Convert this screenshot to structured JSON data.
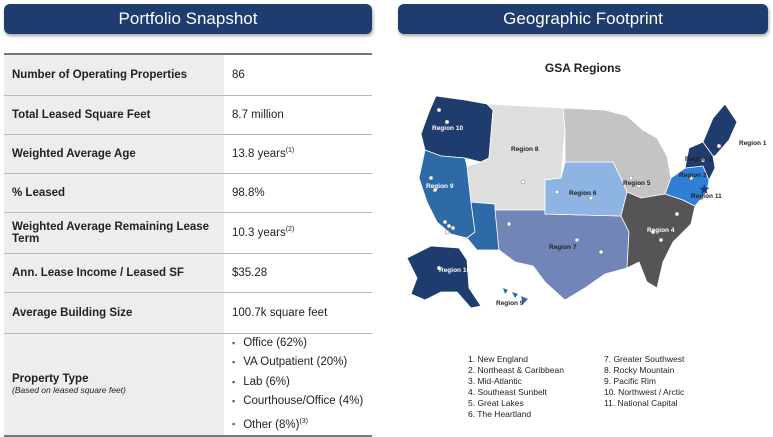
{
  "snapshot": {
    "title": "Portfolio Snapshot",
    "rows": [
      {
        "label": "Number of Operating Properties",
        "value": "86"
      },
      {
        "label": "Total Leased Square Feet",
        "value": "8.7 million"
      },
      {
        "label": "Weighted Average Age",
        "value": "13.8 years",
        "note": "(1)"
      },
      {
        "label": "% Leased",
        "value": "98.8%"
      },
      {
        "label": "Weighted Average Remaining Lease Term",
        "value": "10.3 years",
        "note": "(2)"
      },
      {
        "label": "Ann. Lease Income / Leased SF",
        "value": "$35.28"
      },
      {
        "label": "Average Building Size",
        "value": "100.7k square feet"
      }
    ],
    "property_type": {
      "label": "Property Type",
      "sublabel": "(Based on leased square feet)",
      "items": [
        "Office (62%)",
        "VA Outpatient (20%)",
        "Lab (6%)",
        "Courthouse/Office (4%)",
        "Other (8%)"
      ],
      "other_note": "(3)"
    }
  },
  "footprint": {
    "title": "Geographic Footprint",
    "map_title": "GSA Regions",
    "map_labels": [
      "Region 1",
      "Region 2",
      "Region 3",
      "Region 4",
      "Region 5",
      "Region 6",
      "Region 7",
      "Region 8",
      "Region 9",
      "Region 10",
      "Region 11"
    ],
    "legend_col1": [
      "1.   New England",
      "2.   Northeast & Caribbean",
      "3.   Mid-Atlantic",
      "4.   Southeast Sunbelt",
      "5.   Great Lakes",
      "6.   The Heartland"
    ],
    "legend_col2": [
      "7.   Greater Southwest",
      "8.   Rocky Mountain",
      "9.   Pacific Rim",
      "10. Northwest / Arctic",
      "11. National Capital"
    ]
  },
  "colors": {
    "banner": "#1f3c6e",
    "region_dark": "#1f3c6e",
    "region_mid": "#2e6aa8",
    "region_steel": "#7185b8",
    "region_light": "#8db4e2",
    "region_bright": "#2f7fd6",
    "region_charcoal": "#555555",
    "region_gray": "#c4c4c4",
    "region_pale": "#dedede"
  }
}
